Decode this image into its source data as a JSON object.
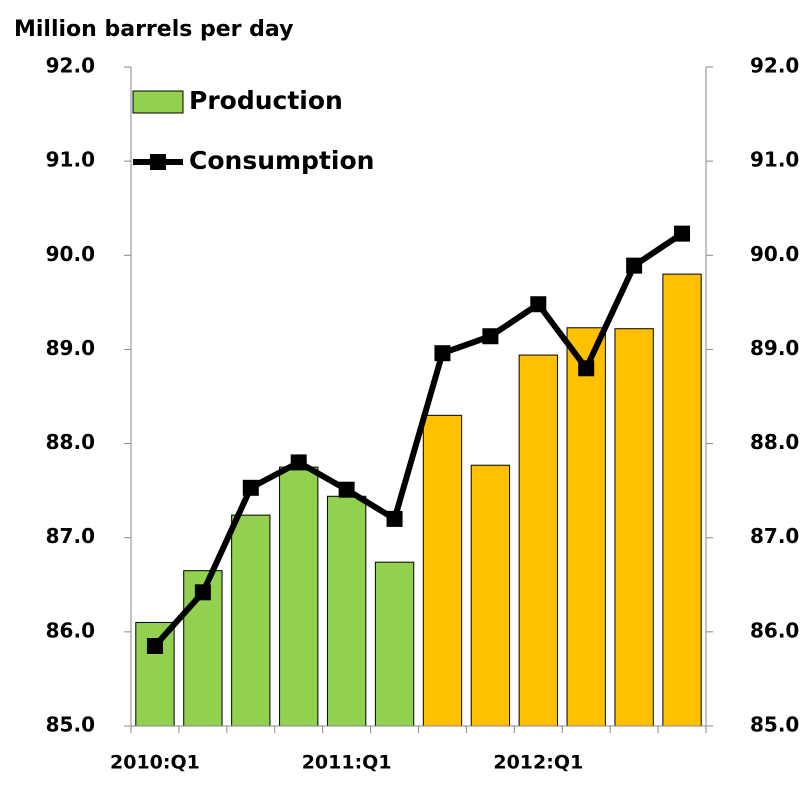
{
  "chart_data": {
    "type": "bar-line",
    "title": "Million barrels per day",
    "categories": [
      "2010:Q1",
      null,
      null,
      null,
      "2011:Q1",
      null,
      null,
      null,
      "2012:Q1",
      null,
      null,
      null
    ],
    "series": [
      {
        "name": "Production",
        "type": "bar",
        "color": "#92d050",
        "colors": [
          "#92d050",
          "#92d050",
          "#92d050",
          "#92d050",
          "#92d050",
          "#92d050",
          "#ffc000",
          "#ffc000",
          "#ffc000",
          "#ffc000",
          "#ffc000",
          "#ffc000"
        ],
        "values": [
          86.1,
          86.65,
          87.24,
          87.75,
          87.44,
          86.74,
          88.3,
          87.77,
          88.94,
          89.23,
          89.22,
          89.8
        ]
      },
      {
        "name": "Consumption",
        "type": "line",
        "color": "#000000",
        "values": [
          85.85,
          86.42,
          87.53,
          87.8,
          87.51,
          87.2,
          88.96,
          89.14,
          89.48,
          88.8,
          89.89,
          90.23
        ]
      }
    ],
    "ylim": [
      85,
      92
    ],
    "yticks": [
      {
        "value": 85,
        "label": "85.0"
      },
      {
        "value": 86,
        "label": "86.0"
      },
      {
        "value": 87,
        "label": "87.0"
      },
      {
        "value": 88,
        "label": "88.0"
      },
      {
        "value": 89,
        "label": "89.0"
      },
      {
        "value": 90,
        "label": "90.0"
      },
      {
        "value": 91,
        "label": "91.0"
      },
      {
        "value": 92,
        "label": "92.0"
      }
    ],
    "y2lim": [
      85,
      92
    ],
    "y2ticks": [
      {
        "value": 85,
        "label": "85.0"
      },
      {
        "value": 86,
        "label": "86.0"
      },
      {
        "value": 87,
        "label": "87.0"
      },
      {
        "value": 88,
        "label": "88.0"
      },
      {
        "value": 89,
        "label": "89.0"
      },
      {
        "value": 90,
        "label": "90.0"
      },
      {
        "value": 91,
        "label": "91.0"
      },
      {
        "value": 92,
        "label": "92.0"
      }
    ],
    "legend": "top-left"
  }
}
